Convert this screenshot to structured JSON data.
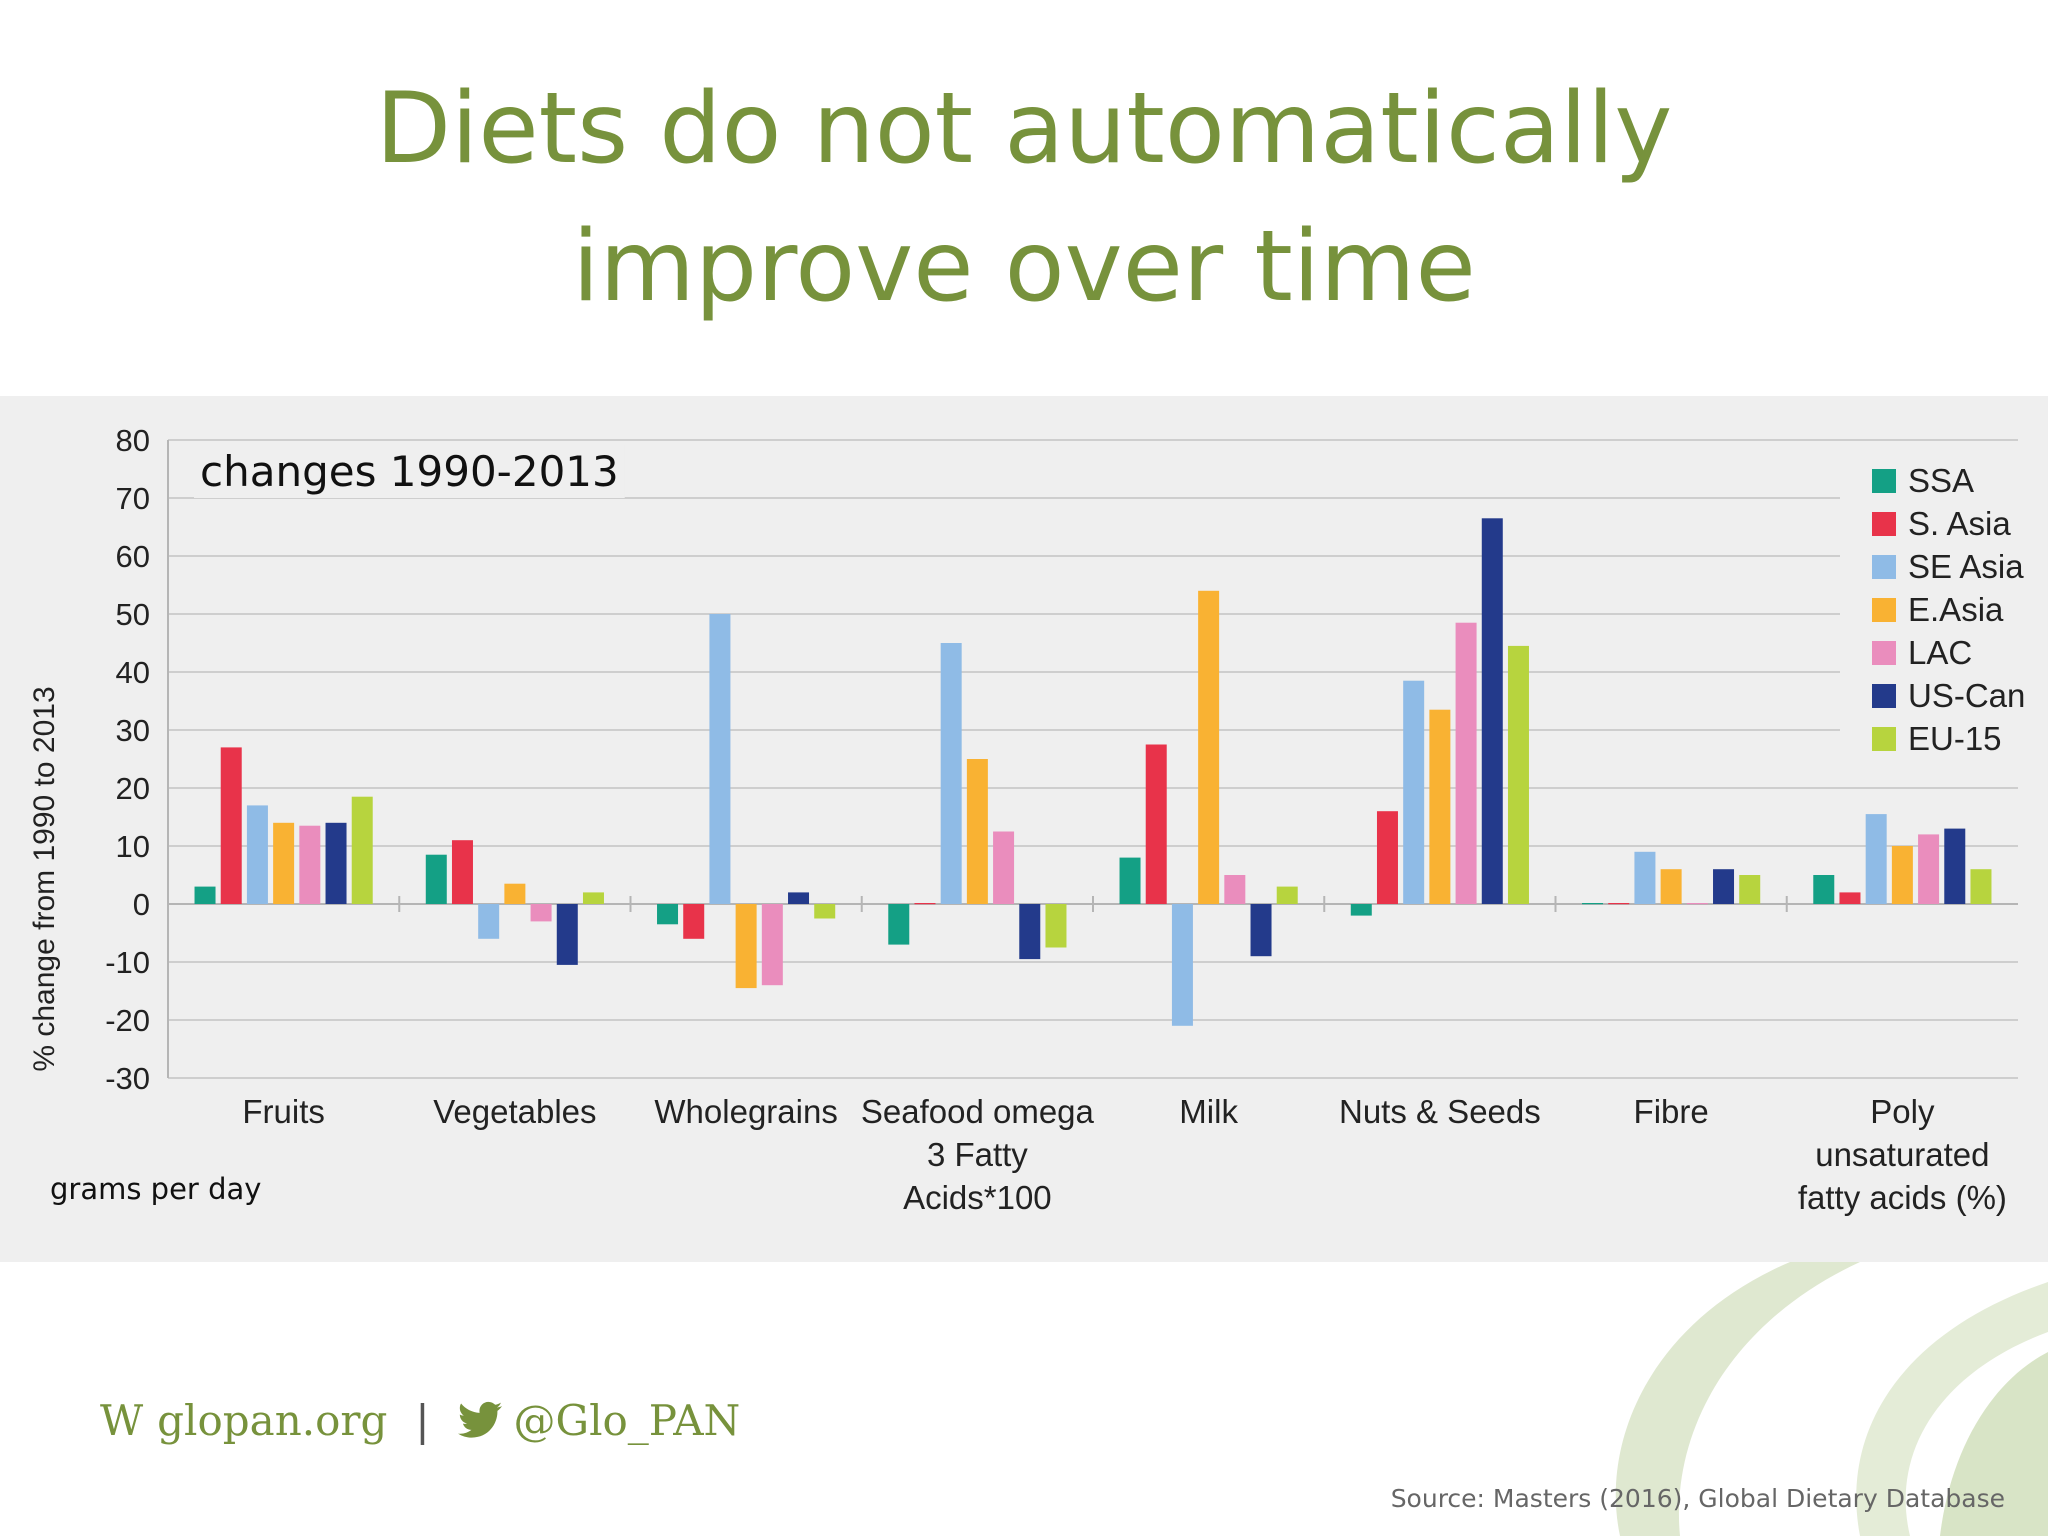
{
  "slide": {
    "title_line1": "Diets do not automatically",
    "title_line2": "improve over time",
    "source": "Source: Masters (2016), Global Dietary Database"
  },
  "footer": {
    "website_prefix": "W",
    "website": "glopan.org",
    "separator": "|",
    "twitter": "@Glo_PAN",
    "twitter_icon": "twitter-bird-icon"
  },
  "chart_data": {
    "type": "bar",
    "subtitle": "changes 1990-2013",
    "ylabel": "% change from 1990 to 2013",
    "units_note": "grams per day",
    "ylim": [
      -30,
      80
    ],
    "yticks": [
      80,
      70,
      60,
      50,
      40,
      30,
      20,
      10,
      0,
      -10,
      -20,
      -30
    ],
    "grid": true,
    "legend_position": "top-right",
    "categories": [
      [
        "Fruits"
      ],
      [
        "Vegetables"
      ],
      [
        "Wholegrains"
      ],
      [
        "Seafood omega",
        "3 Fatty",
        "Acids*100"
      ],
      [
        "Milk"
      ],
      [
        "Nuts & Seeds"
      ],
      [
        "Fibre"
      ],
      [
        "Poly",
        "unsaturated",
        "fatty acids (%)"
      ]
    ],
    "series": [
      {
        "name": "SSA",
        "color": "#14a085",
        "values": [
          3,
          8.5,
          -3.5,
          -7,
          8,
          -2,
          0,
          5
        ]
      },
      {
        "name": "S. Asia",
        "color": "#e8334a",
        "values": [
          27,
          11,
          -6,
          0,
          27.5,
          16,
          0,
          2
        ]
      },
      {
        "name": "SE Asia",
        "color": "#8fbbe6",
        "values": [
          17,
          -6,
          50,
          45,
          -21,
          38.5,
          9,
          15.5
        ]
      },
      {
        "name": "E.Asia",
        "color": "#f9b233",
        "values": [
          14,
          3.5,
          -14.5,
          25,
          54,
          33.5,
          6,
          10
        ]
      },
      {
        "name": "LAC",
        "color": "#ea8dbd",
        "values": [
          13.5,
          -3,
          -14,
          12.5,
          5,
          48.5,
          0,
          12
        ]
      },
      {
        "name": "US-Can",
        "color": "#233a8b",
        "values": [
          14,
          -10.5,
          2,
          -9.5,
          -9,
          66.5,
          6,
          13
        ]
      },
      {
        "name": "EU-15",
        "color": "#b7d43e",
        "values": [
          18.5,
          2,
          -2.5,
          -7.5,
          3,
          44.5,
          5,
          6
        ]
      }
    ]
  }
}
